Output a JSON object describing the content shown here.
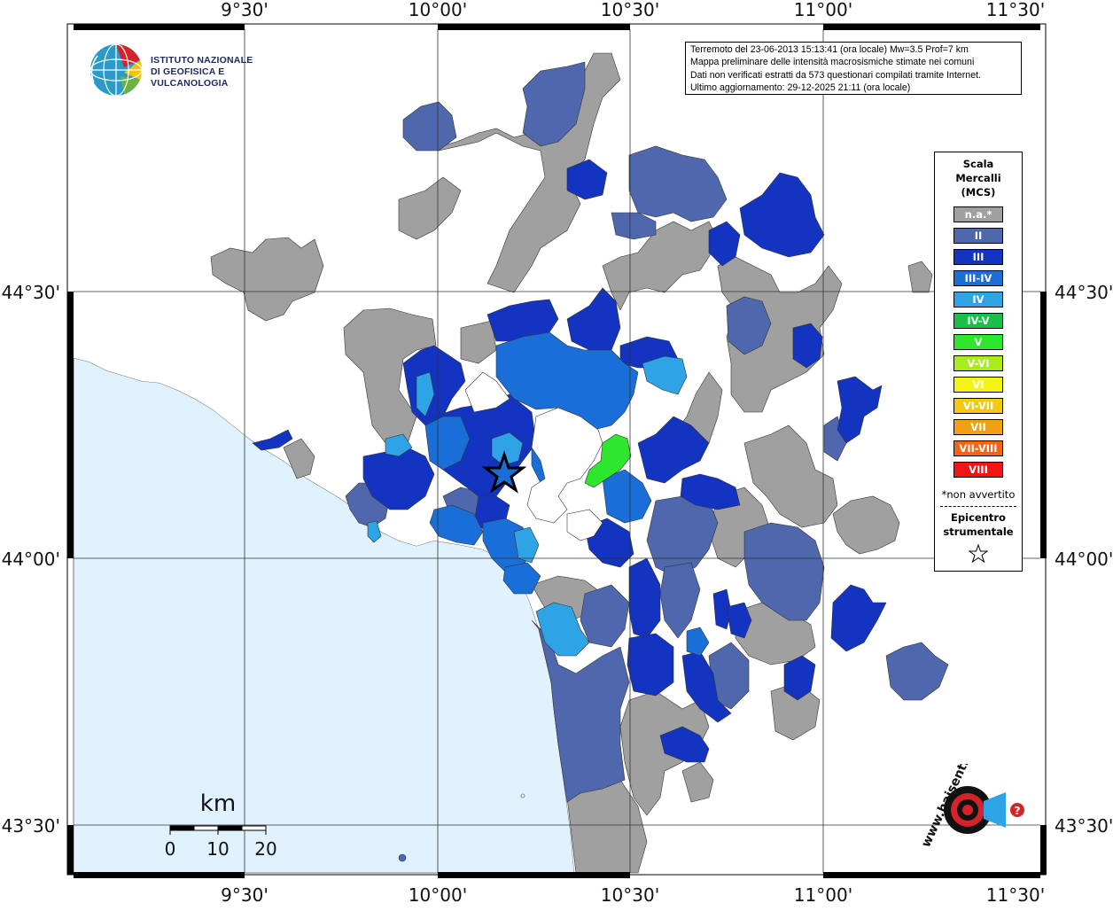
{
  "info": {
    "line1": "Terremoto del 23-06-2013 15:13:41 (ora locale) Mw=3.5 Prof=7 km",
    "line2": "Mappa preliminare delle intensità macrosismiche stimate nei comuni",
    "line3": "Dati non verificati estratti da 573 questionari compilati tramite Internet.",
    "line4": "Ultimo aggiornamento: 29-12-2025 21:11 (ora locale)"
  },
  "logo": {
    "line1": "ISTITUTO NAZIONALE",
    "line2": "DI GEOFISICA E VULCANOLOGIA"
  },
  "hsit_logo_text": "www.haisentitoilterremoto.it",
  "axes": {
    "top": [
      "9°30'",
      "10°00'",
      "10°30'",
      "11°00'",
      "11°30'"
    ],
    "bottom": [
      "9°30'",
      "10°00'",
      "10°30'",
      "11°00'",
      "11°30'"
    ],
    "left": [
      "44°30'",
      "44°00'",
      "43°30'"
    ],
    "right": [
      "44°30'",
      "44°00'",
      "43°30'"
    ]
  },
  "scalebar": {
    "unit": "km",
    "ticks": [
      "0",
      "10",
      "20"
    ]
  },
  "legend": {
    "title1": "Scala",
    "title2": "Mercalli",
    "title3": "(MCS)",
    "items": [
      {
        "label": "n.a.*",
        "color": "#a0a0a0"
      },
      {
        "label": "II",
        "color": "#4f68ad"
      },
      {
        "label": "III",
        "color": "#1334c0"
      },
      {
        "label": "III-IV",
        "color": "#1a6ed8"
      },
      {
        "label": "IV",
        "color": "#2ea3e6"
      },
      {
        "label": "IV-V",
        "color": "#18c04a"
      },
      {
        "label": "V",
        "color": "#2ee62e"
      },
      {
        "label": "V-VI",
        "color": "#a8ec20"
      },
      {
        "label": "VI",
        "color": "#f4f414"
      },
      {
        "label": "VI-VII",
        "color": "#f4c814"
      },
      {
        "label": "VII",
        "color": "#f4a014"
      },
      {
        "label": "VII-VIII",
        "color": "#f46414"
      },
      {
        "label": "VIII",
        "color": "#f41414"
      }
    ],
    "note": "*non avvertito",
    "epicentro1": "Epicentro",
    "epicentro2": "strumentale"
  },
  "colors": {
    "sea": "#e0f2fd",
    "land": "#ffffff",
    "na": "#a0a0a0",
    "II": "#4f68ad",
    "III": "#1334c0",
    "III_IV": "#1a6ed8",
    "IV": "#2ea3e6",
    "V": "#2ee62e"
  }
}
